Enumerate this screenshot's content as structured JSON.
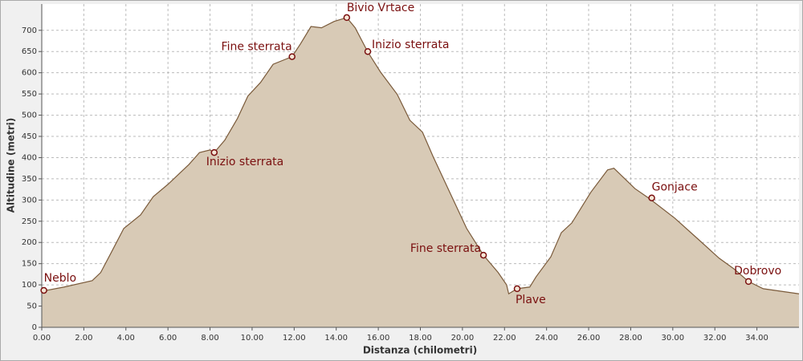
{
  "chart_data": {
    "type": "area",
    "x_label": "Distanza (chilometri)",
    "y_label": "Altitudine (metri)",
    "x": [
      0,
      1.07,
      2.4,
      2.8,
      3.3,
      3.9,
      4.7,
      5.3,
      6.0,
      7.0,
      7.5,
      8.0,
      8.2,
      8.7,
      9.3,
      9.8,
      10.4,
      11.0,
      11.6,
      11.9,
      12.3,
      12.8,
      13.3,
      13.9,
      14.5,
      14.9,
      15.5,
      16.1,
      16.9,
      17.5,
      18.1,
      18.6,
      19.4,
      20.2,
      21.0,
      21.7,
      22.1,
      22.2,
      22.6,
      23.2,
      23.5,
      24.2,
      24.7,
      25.2,
      26.1,
      26.9,
      27.2,
      28.2,
      28.9,
      30.1,
      31.2,
      32.2,
      32.9,
      33.6,
      34.3,
      36.0
    ],
    "values": [
      85,
      95,
      110,
      129,
      176,
      233,
      265,
      308,
      337,
      384,
      412,
      418,
      412,
      441,
      492,
      545,
      577,
      620,
      632,
      638,
      668,
      709,
      706,
      721,
      730,
      706,
      649,
      602,
      549,
      488,
      460,
      403,
      318,
      233,
      170,
      129,
      100,
      79,
      91,
      95,
      119,
      166,
      223,
      246,
      318,
      371,
      375,
      327,
      303,
      257,
      208,
      163,
      138,
      108,
      91,
      79
    ],
    "color": "#d8cab6",
    "line_color": "#7a5a3a",
    "waypoints": [
      {
        "label": "Neblo",
        "x": 0.1,
        "y": 87
      },
      {
        "label": "Inizio sterrata",
        "x": 8.2,
        "y": 412
      },
      {
        "label": "Fine sterrata",
        "x": 11.9,
        "y": 638
      },
      {
        "label": "Bivio Vrtace",
        "x": 14.5,
        "y": 730
      },
      {
        "label": "Inizio sterrata",
        "x": 15.5,
        "y": 650
      },
      {
        "label": "Fine sterrata",
        "x": 21.0,
        "y": 170
      },
      {
        "label": "Plave",
        "x": 22.6,
        "y": 91
      },
      {
        "label": "Gonjace",
        "x": 29.0,
        "y": 305
      },
      {
        "label": "Dobrovo",
        "x": 33.6,
        "y": 108
      }
    ],
    "xlim": [
      0,
      36
    ],
    "ylim": [
      0,
      762
    ],
    "xticks": [
      {
        "value": 0,
        "label": "0.00"
      },
      {
        "value": 2,
        "label": "2.00"
      },
      {
        "value": 4,
        "label": "4.00"
      },
      {
        "value": 6,
        "label": "6.00"
      },
      {
        "value": 8,
        "label": "8.00"
      },
      {
        "value": 10,
        "label": "10.00"
      },
      {
        "value": 12,
        "label": "12.00"
      },
      {
        "value": 14,
        "label": "14.00"
      },
      {
        "value": 16,
        "label": "16.00"
      },
      {
        "value": 18,
        "label": "18.00"
      },
      {
        "value": 20,
        "label": "20.00"
      },
      {
        "value": 22,
        "label": "22.00"
      },
      {
        "value": 24,
        "label": "24.00"
      },
      {
        "value": 26,
        "label": "26.00"
      },
      {
        "value": 28,
        "label": "28.00"
      },
      {
        "value": 30,
        "label": "30.00"
      },
      {
        "value": 32,
        "label": "32.00"
      },
      {
        "value": 34,
        "label": "34.00"
      }
    ],
    "yticks": [
      0,
      50,
      100,
      150,
      200,
      250,
      300,
      350,
      400,
      450,
      500,
      550,
      600,
      650,
      700
    ],
    "grid": true
  }
}
